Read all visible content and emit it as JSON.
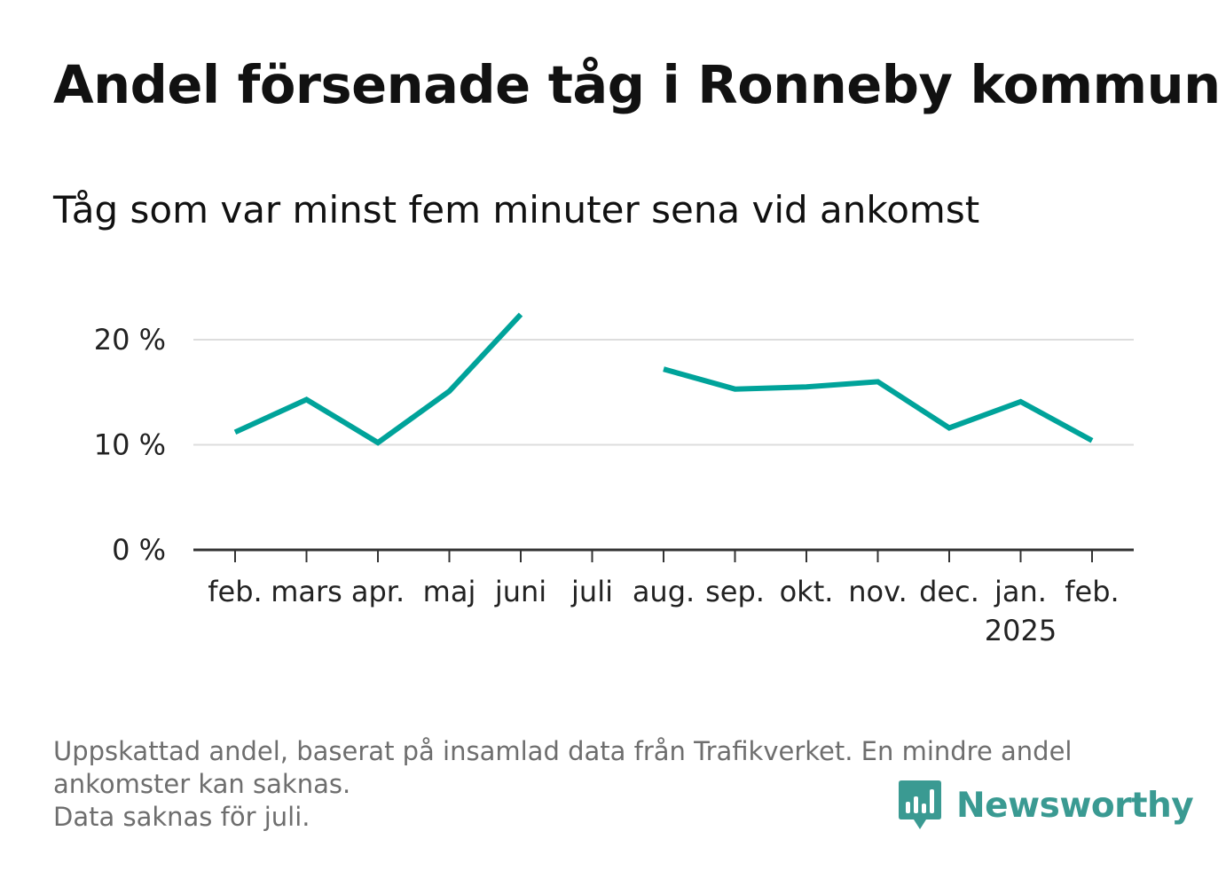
{
  "title": "Andel försenade tåg i Ronneby kommun",
  "subtitle": "Tåg som var minst fem minuter sena vid ankomst",
  "footer": {
    "line1": "Uppskattad andel, baserat på insamlad data från Trafikverket. En mindre andel",
    "line2": "ankomster kan saknas.",
    "line3": "Data saknas för juli."
  },
  "brand": {
    "name": "Newsworthy",
    "color": "#3a9a92",
    "icon": "newsworthy-logo-icon"
  },
  "chart_data": {
    "type": "line",
    "title": "Andel försenade tåg i Ronneby kommun",
    "subtitle": "Tåg som var minst fem minuter sena vid ankomst",
    "xlabel": "",
    "ylabel": "",
    "categories": [
      "feb.",
      "mars",
      "apr.",
      "maj",
      "juni",
      "juli",
      "aug.",
      "sep.",
      "okt.",
      "nov.",
      "dec.",
      "jan.",
      "feb."
    ],
    "year_labels": [
      "",
      "",
      "",
      "",
      "",
      "",
      "",
      "",
      "",
      "",
      "",
      "2025",
      ""
    ],
    "series": [
      {
        "values": [
          11.2,
          14.3,
          10.2,
          15.1,
          22.4,
          null,
          17.2,
          15.3,
          15.5,
          16.0,
          11.6,
          14.1,
          10.4
        ],
        "color": "#00a39a"
      }
    ],
    "yticks": [
      0,
      10,
      20
    ],
    "ytick_labels": [
      "0 %",
      "10 %",
      "20 %"
    ],
    "ylim": [
      0,
      23
    ],
    "grid": true,
    "legend": "none"
  }
}
